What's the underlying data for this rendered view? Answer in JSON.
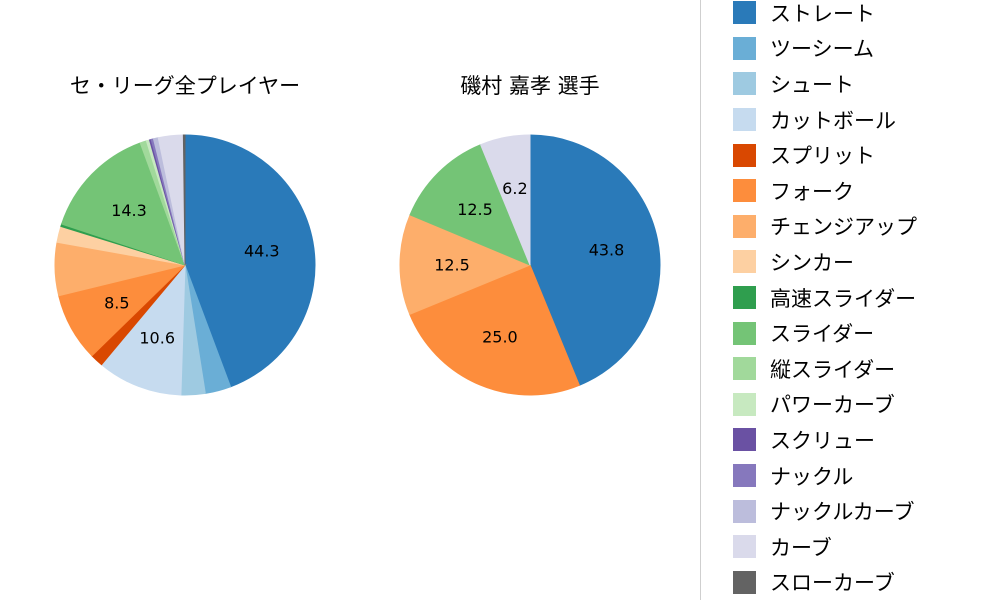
{
  "chart_data": [
    {
      "type": "pie",
      "title": "セ・リーグ全プレイヤー",
      "unit": "percent",
      "start_angle": "top",
      "direction": "clockwise",
      "categories": [
        "ストレート",
        "ツーシーム",
        "シュート",
        "カットボール",
        "スプリット",
        "フォーク",
        "チェンジアップ",
        "シンカー",
        "高速スライダー",
        "スライダー",
        "縦スライダー",
        "パワーカーブ",
        "スクリュー",
        "ナックル",
        "ナックルカーブ",
        "カーブ",
        "スローカーブ"
      ],
      "values": [
        44.3,
        3.2,
        3.0,
        10.6,
        1.6,
        8.5,
        6.6,
        2.0,
        0.3,
        14.3,
        0.8,
        0.4,
        0.2,
        0.3,
        0.6,
        3.1,
        0.2
      ],
      "slice_labels": [
        "44.3",
        "",
        "",
        "10.6",
        "",
        "8.5",
        "",
        "",
        "",
        "14.3",
        "",
        "",
        "",
        "",
        "",
        "",
        ""
      ]
    },
    {
      "type": "pie",
      "title": "磯村 嘉孝 選手",
      "unit": "percent",
      "start_angle": "top",
      "direction": "clockwise",
      "categories": [
        "ストレート",
        "フォーク",
        "チェンジアップ",
        "スライダー",
        "カーブ"
      ],
      "values": [
        43.8,
        25.0,
        12.5,
        12.5,
        6.2
      ],
      "slice_labels": [
        "43.8",
        "25.0",
        "12.5",
        "12.5",
        "6.2"
      ]
    }
  ],
  "legend": {
    "position": "right",
    "items": [
      {
        "label": "ストレート",
        "color": "#2a7ab9"
      },
      {
        "label": "ツーシーム",
        "color": "#6aaed6"
      },
      {
        "label": "シュート",
        "color": "#9ecae1"
      },
      {
        "label": "カットボール",
        "color": "#c6dbef"
      },
      {
        "label": "スプリット",
        "color": "#d94801"
      },
      {
        "label": "フォーク",
        "color": "#fd8d3c"
      },
      {
        "label": "チェンジアップ",
        "color": "#fdae6b"
      },
      {
        "label": "シンカー",
        "color": "#fdd0a2"
      },
      {
        "label": "高速スライダー",
        "color": "#2f9e4e"
      },
      {
        "label": "スライダー",
        "color": "#74c476"
      },
      {
        "label": "縦スライダー",
        "color": "#a1d99b"
      },
      {
        "label": "パワーカーブ",
        "color": "#c7e9c0"
      },
      {
        "label": "スクリュー",
        "color": "#6a51a3"
      },
      {
        "label": "ナックル",
        "color": "#8678bd"
      },
      {
        "label": "ナックルカーブ",
        "color": "#bcbddc"
      },
      {
        "label": "カーブ",
        "color": "#dadaeb"
      },
      {
        "label": "スローカーブ",
        "color": "#636363"
      }
    ]
  }
}
